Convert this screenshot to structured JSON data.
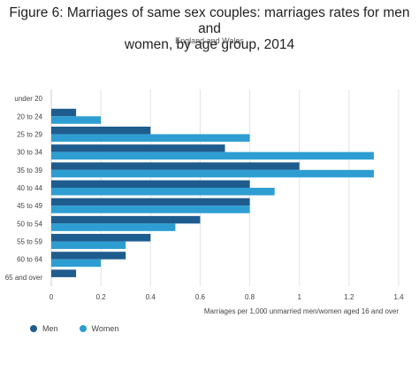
{
  "header": {
    "title_line1": "Figure 6: Marriages of same sex couples: marriages rates for men and",
    "title_line2": "women, by age group, 2014",
    "subtitle": "England and Wales"
  },
  "chart_data": {
    "type": "bar",
    "orientation": "horizontal",
    "categories": [
      "under 20",
      "20 to 24",
      "25 to 29",
      "30 to 34",
      "35 to 39",
      "40 to 44",
      "45 to 49",
      "50 to 54",
      "55 to 59",
      "60 to 64",
      "65 and over"
    ],
    "series": [
      {
        "name": "Men",
        "color": "#1f5c8e",
        "values": [
          0,
          0.1,
          0.4,
          0.7,
          1.0,
          0.8,
          0.8,
          0.6,
          0.4,
          0.3,
          0.1
        ]
      },
      {
        "name": "Women",
        "color": "#2e9ed2",
        "values": [
          0,
          0.2,
          0.8,
          1.3,
          1.3,
          0.9,
          0.8,
          0.5,
          0.3,
          0.2,
          0
        ]
      }
    ],
    "xlabel": "Marriages per 1,000 unmarried men/women aged 16 and over",
    "xlim": [
      0,
      1.4
    ],
    "xticks": [
      0,
      0.2,
      0.4,
      0.6,
      0.8,
      1,
      1.2,
      1.4
    ],
    "grid": true,
    "legend_position": "bottom-left"
  }
}
